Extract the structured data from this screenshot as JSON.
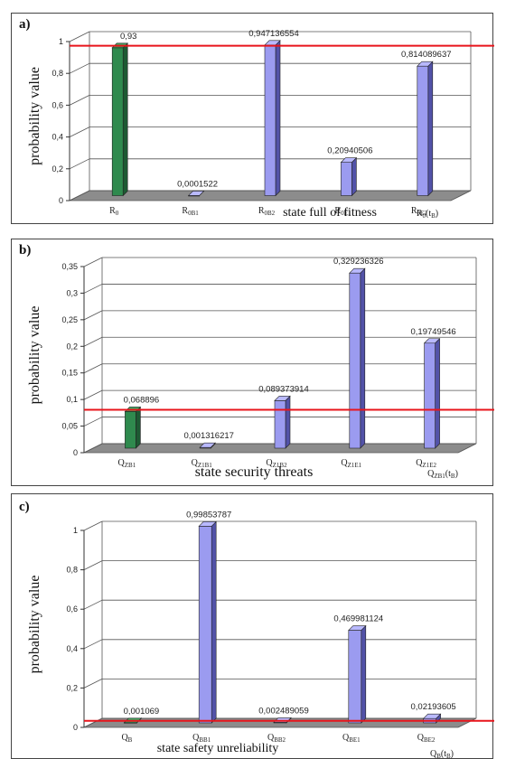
{
  "chart_data": [
    {
      "type": "bar",
      "panel": "a)",
      "title": "",
      "ylabel": "probability value",
      "xlabel": "state full of fitness",
      "xlabel_suffix": {
        "main": "R",
        "sub": "0",
        "tail": "(t",
        "tail_sub": "B",
        "end": ")"
      },
      "ylim": [
        0,
        1
      ],
      "yticks": [
        "0",
        "0,2",
        "0,4",
        "0,6",
        "0,8",
        "1"
      ],
      "categories": [
        {
          "main": "R",
          "sub": "0"
        },
        {
          "main": "R",
          "sub": "0B1"
        },
        {
          "main": "R",
          "sub": "0B2"
        },
        {
          "main": "R",
          "sub": "0E1"
        },
        {
          "main": "R",
          "sub": "0E2"
        }
      ],
      "values": [
        0.93,
        0.0001522,
        0.947136554,
        0.20940506,
        0.814089637
      ],
      "value_labels": [
        "0,93",
        "0,0001522",
        "0,947136554",
        "0,20940506",
        "0,814089637"
      ],
      "bar_colors": [
        "#2f8a4e",
        "#9b9bf0",
        "#9b9bf0",
        "#9b9bf0",
        "#9b9bf0"
      ],
      "threshold": 0.93,
      "threshold_color": "#e8141b"
    },
    {
      "type": "bar",
      "panel": "b)",
      "title": "",
      "ylabel": "probability value",
      "xlabel": "state security threats",
      "xlabel_suffix": {
        "main": "Q",
        "sub": "ZB1",
        "tail": "(t",
        "tail_sub": "B",
        "end": ")"
      },
      "ylim": [
        0,
        0.35
      ],
      "yticks": [
        "0",
        "0,05",
        "0,1",
        "0,15",
        "0,2",
        "0,25",
        "0,3",
        "0,35"
      ],
      "categories": [
        {
          "main": "Q",
          "sub": "ZB1"
        },
        {
          "main": "Q",
          "sub": "Z1B1"
        },
        {
          "main": "Q",
          "sub": "Z1B2"
        },
        {
          "main": "Q",
          "sub": "Z1E1"
        },
        {
          "main": "Q",
          "sub": "Z1E2"
        }
      ],
      "values": [
        0.068896,
        0.001316217,
        0.089373914,
        0.329236326,
        0.19749546
      ],
      "value_labels": [
        "0,068896",
        "0,001316217",
        "0,089373914",
        "0,329236326",
        "0,19749546"
      ],
      "bar_colors": [
        "#2f8a4e",
        "#9b9bf0",
        "#9b9bf0",
        "#9b9bf0",
        "#9b9bf0"
      ],
      "threshold": 0.068896,
      "threshold_color": "#e8141b"
    },
    {
      "type": "bar",
      "panel": "c)",
      "title": "",
      "ylabel": "probability value",
      "xlabel": "state safety unreliability",
      "xlabel_suffix": {
        "main": "Q",
        "sub": "B",
        "tail": "(t",
        "tail_sub": "B",
        "end": ")"
      },
      "ylim": [
        0,
        1
      ],
      "yticks": [
        "0",
        "0,2",
        "0,4",
        "0,6",
        "0,8",
        "1"
      ],
      "categories": [
        {
          "main": "Q",
          "sub": "B"
        },
        {
          "main": "Q",
          "sub": "BB1"
        },
        {
          "main": "Q",
          "sub": "BB2"
        },
        {
          "main": "Q",
          "sub": "BE1"
        },
        {
          "main": "Q",
          "sub": "BE2"
        }
      ],
      "values": [
        0.001069,
        0.99853787,
        0.002489059,
        0.469981124,
        0.02193605
      ],
      "value_labels": [
        "0,001069",
        "0,99853787",
        "0,002489059",
        "0,469981124",
        "0,02193605"
      ],
      "bar_colors": [
        "#2f8a4e",
        "#9b9bf0",
        "#9b9bf0",
        "#9b9bf0",
        "#9b9bf0"
      ],
      "threshold": 0.001069,
      "threshold_color": "#e8141b"
    }
  ]
}
